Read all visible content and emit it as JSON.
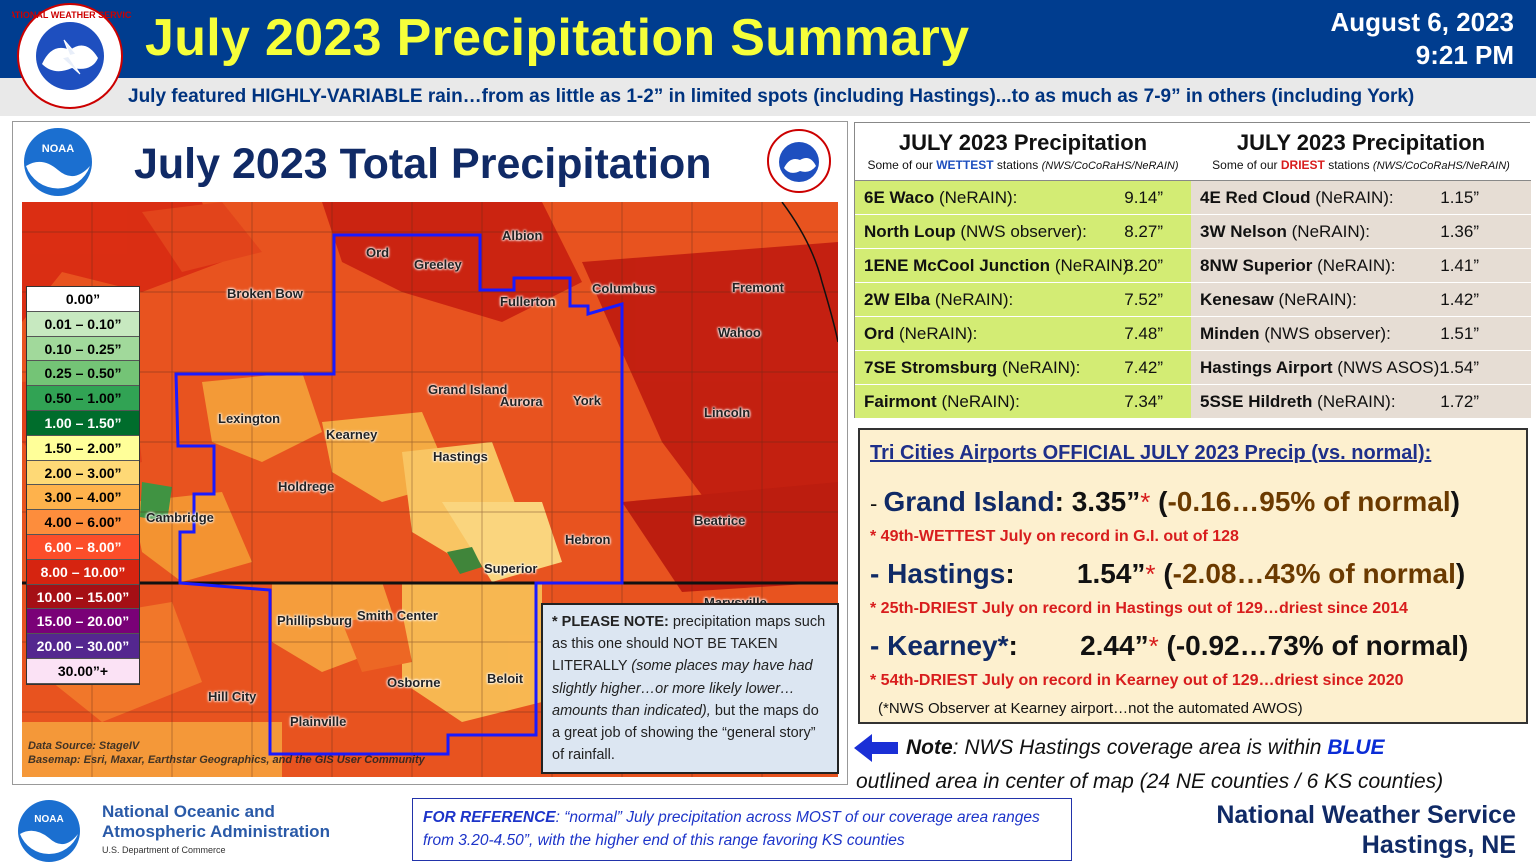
{
  "header": {
    "title": "July 2023 Precipitation Summary",
    "date": "August 6, 2023",
    "time": "9:21 PM",
    "subtitle": "July featured HIGHLY-VARIABLE rain…from as little as 1-2” in limited spots (including Hastings)...to as much as 7-9” in others (including York)",
    "nws_seal_text": "NATIONAL WEATHER SERVICE"
  },
  "map": {
    "title": "July 2023 Total Precipitation",
    "cities": [
      "Albion",
      "Ord",
      "Greeley",
      "Broken Bow",
      "Fullerton",
      "Columbus",
      "Fremont",
      "Wahoo",
      "Grand Island",
      "Aurora",
      "York",
      "Lincoln",
      "Lexington",
      "Kearney",
      "Hastings",
      "Holdrege",
      "Cambridge",
      "Beatrice",
      "Hebron",
      "Superior",
      "Phillipsburg",
      "Smith Center",
      "Osborne",
      "Beloit",
      "Hill City",
      "Plainville",
      "Marysville"
    ],
    "legend": [
      {
        "label": "0.00”",
        "color": "#ffffff"
      },
      {
        "label": "0.01 – 0.10”",
        "color": "#c7e9c0"
      },
      {
        "label": "0.10 – 0.25”",
        "color": "#a1d99b"
      },
      {
        "label": "0.25 – 0.50”",
        "color": "#74c476"
      },
      {
        "label": "0.50 – 1.00”",
        "color": "#31a354"
      },
      {
        "label": "1.00 – 1.50”",
        "color": "#006d2c"
      },
      {
        "label": "1.50 – 2.00”",
        "color": "#ffff99"
      },
      {
        "label": "2.00 – 3.00”",
        "color": "#fed976"
      },
      {
        "label": "3.00 – 4.00”",
        "color": "#feb24c"
      },
      {
        "label": "4.00 – 6.00”",
        "color": "#fd8d3c"
      },
      {
        "label": "6.00 – 8.00”",
        "color": "#fc4e2a"
      },
      {
        "label": "8.00 – 10.00”",
        "color": "#d62410"
      },
      {
        "label": "10.00 – 15.00”",
        "color": "#a50f15"
      },
      {
        "label": "15.00 – 20.00”",
        "color": "#7a0177"
      },
      {
        "label": "20.00 – 30.00”",
        "color": "#54278f"
      },
      {
        "label": "30.00”+",
        "color": "#fbe2f5"
      }
    ],
    "source_line1": "Data Source: StageIV",
    "source_line2": "Basemap: Esri, Maxar, Earthstar Geographics, and the GIS User Community",
    "note_bold": "* PLEASE NOTE:",
    "note_text1": "precipitation maps such as this one should NOT BE TAKEN LITERALLY",
    "note_italic": "(some places may have had slightly higher…or more likely lower… amounts than indicated),",
    "note_text2": "but the maps do a great job of showing the “general story” of rainfall."
  },
  "wettest": {
    "title": "JULY 2023 Precipitation",
    "sub_prefix": "Some of our",
    "sub_em": "WETTEST",
    "sub_suffix": "stations",
    "sub_src": "(NWS/CoCoRaHS/NeRAIN)",
    "rows": [
      {
        "station": "6E Waco",
        "src": "(NeRAIN):",
        "value": "9.14”"
      },
      {
        "station": "North Loup",
        "src": "(NWS observer):",
        "value": "8.27”"
      },
      {
        "station": "1ENE McCool Junction",
        "src": "(NeRAIN):",
        "value": "8.20”"
      },
      {
        "station": "2W Elba",
        "src": "(NeRAIN):",
        "value": "7.52”"
      },
      {
        "station": "Ord",
        "src": "(NeRAIN):",
        "value": "7.48”"
      },
      {
        "station": "7SE Stromsburg",
        "src": "(NeRAIN):",
        "value": "7.42”"
      },
      {
        "station": "Fairmont",
        "src": "(NeRAIN):",
        "value": "7.34”"
      }
    ]
  },
  "driest": {
    "title": "JULY 2023 Precipitation",
    "sub_prefix": "Some of our",
    "sub_em": "DRIEST",
    "sub_suffix": "stations",
    "sub_src": "(NWS/CoCoRaHS/NeRAIN)",
    "rows": [
      {
        "station": "4E Red Cloud",
        "src": "(NeRAIN):",
        "value": "1.15”"
      },
      {
        "station": "3W Nelson",
        "src": "(NeRAIN):",
        "value": "1.36”"
      },
      {
        "station": "8NW Superior",
        "src": "(NeRAIN):",
        "value": "1.41”"
      },
      {
        "station": "Kenesaw",
        "src": "(NeRAIN):",
        "value": "1.42”"
      },
      {
        "station": "Minden",
        "src": "(NWS observer):",
        "value": "1.51”"
      },
      {
        "station": "Hastings Airport",
        "src": " (NWS ASOS):",
        "value": "1.54”"
      },
      {
        "station": "5SSE Hildreth",
        "src": "(NeRAIN):",
        "value": "1.72”"
      }
    ]
  },
  "tri_cities": {
    "heading": "Tri Cities Airports OFFICIAL JULY 2023 Precip (vs. normal):",
    "gi_name": "Grand Island",
    "gi_value": "3.35”",
    "gi_normal": "-0.16…95% of normal",
    "gi_note": "* 49th-WETTEST July on record in G.I. out of 128",
    "hast_name": "Hastings",
    "hast_value": "1.54”",
    "hast_normal": "-2.08…43% of normal",
    "hast_note": "* 25th-DRIEST July on record in Hastings out of 129…driest since 2014",
    "kear_name": "Kearney*",
    "kear_value": "2.44”",
    "kear_normal": "-0.92…73% of normal",
    "kear_note": "* 54th-DRIEST July on record in Kearney out of 129…driest since 2020",
    "footnote": "(*NWS Observer at Kearney airport…not the automated AWOS)"
  },
  "coverage_note": {
    "label": "Note",
    "text1": ": NWS Hastings coverage area is within",
    "blue": "BLUE",
    "text2": "outlined area in center of map (24 NE counties / 6 KS counties)"
  },
  "footer": {
    "noaa_line1": "National Oceanic and",
    "noaa_line2": "Atmospheric Administration",
    "noaa_dept": "U.S. Department of Commerce",
    "ref_label": "FOR REFERENCE",
    "ref_text": ": “normal” July precipitation across MOST of our coverage area ranges from 3.20-4.50”, with the higher end of this range favoring KS counties",
    "nws_line1": "National Weather Service",
    "nws_line2": "Hastings, NE",
    "noaa_logo_text": "NOAA"
  },
  "colors": {
    "header_bg": "#003d8f",
    "title_yellow": "#f6ff3a",
    "wet_row": "#d3ec74",
    "dry_row": "#e6ddd4",
    "coverage_outline": "#1a1aff"
  }
}
